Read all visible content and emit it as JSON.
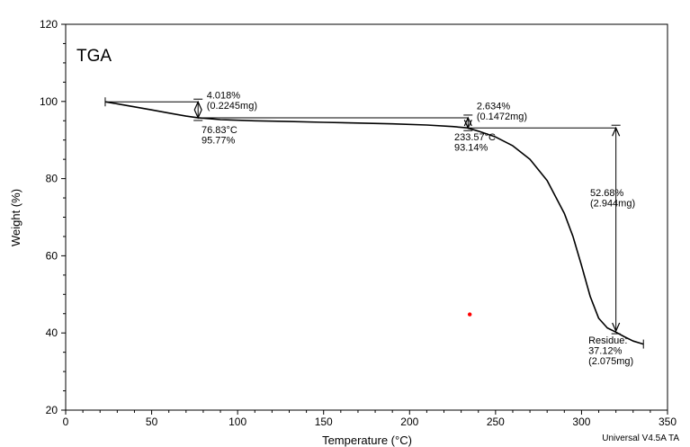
{
  "chart_data": {
    "type": "line",
    "title": "",
    "panel_label": "TGA",
    "xlabel": "Temperature (°C)",
    "ylabel": "Weight (%)",
    "xlim": [
      0,
      350
    ],
    "ylim": [
      20,
      120
    ],
    "x_ticks": [
      "0",
      "50",
      "100",
      "150",
      "200",
      "250",
      "300",
      "350"
    ],
    "y_ticks": [
      "20",
      "40",
      "60",
      "80",
      "100",
      "120"
    ],
    "grid": false,
    "legend": "none",
    "footer": "Universal V4.5A TA",
    "series": [
      {
        "color": "#000000",
        "x": [
          23,
          30,
          40,
          50,
          60,
          70,
          76.83,
          90,
          110,
          130,
          150,
          170,
          190,
          210,
          225,
          233.57,
          240,
          250,
          260,
          270,
          280,
          290,
          295,
          300,
          305,
          310,
          315,
          320,
          325,
          330,
          336
        ],
        "y": [
          99.9,
          99.4,
          98.6,
          97.8,
          97.0,
          96.2,
          95.77,
          95.3,
          95.0,
          94.8,
          94.6,
          94.4,
          94.2,
          93.9,
          93.5,
          93.14,
          92.3,
          90.8,
          88.5,
          85.0,
          79.5,
          71.0,
          65.0,
          57.5,
          49.5,
          43.8,
          41.3,
          40.2,
          39.0,
          37.9,
          37.12
        ]
      }
    ],
    "annotations": [
      {
        "lines": [
          "4.018%",
          "(0.2245mg)"
        ],
        "x": 82,
        "y": 100.8
      },
      {
        "lines": [
          "76.83°C",
          "95.77%"
        ],
        "x": 79,
        "y": 91.8
      },
      {
        "lines": [
          "2.634%",
          "(0.1472mg)"
        ],
        "x": 239,
        "y": 98.0
      },
      {
        "lines": [
          "233.57°C",
          "93.14%"
        ],
        "x": 226,
        "y": 89.9
      },
      {
        "lines": [
          "52.68%",
          "(2.944mg)"
        ],
        "x": 305,
        "y": 75.5
      },
      {
        "lines": [
          "Residue:",
          "37.12%",
          "(2.075mg)"
        ],
        "x": 304,
        "y": 37.3
      }
    ],
    "brackets": [
      {
        "x": 77,
        "from": 99.9,
        "to": 95.77
      },
      {
        "x": 234,
        "from": 95.77,
        "to": 93.14
      },
      {
        "x": 320,
        "from": 93.14,
        "to": 40.5
      }
    ],
    "marker": {
      "x": 235,
      "y": 44.8,
      "color": "#ff0000"
    }
  }
}
